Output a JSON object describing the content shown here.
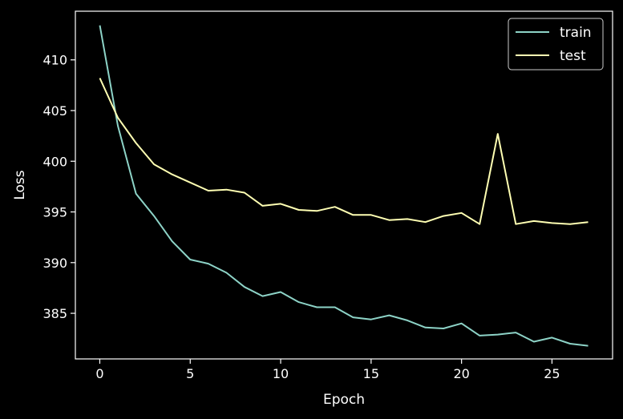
{
  "chart_data": {
    "type": "line",
    "title": "",
    "xlabel": "Epoch",
    "ylabel": "Loss",
    "xlim": [
      -1.35,
      28.35
    ],
    "ylim": [
      380.5,
      414.8
    ],
    "xticks": [
      0,
      5,
      10,
      15,
      20,
      25
    ],
    "yticks": [
      385,
      390,
      395,
      400,
      405,
      410
    ],
    "grid": false,
    "legend_position": "upper-right",
    "x": [
      0,
      1,
      2,
      3,
      4,
      5,
      6,
      7,
      8,
      9,
      10,
      11,
      12,
      13,
      14,
      15,
      16,
      17,
      18,
      19,
      20,
      21,
      22,
      23,
      24,
      25,
      26,
      27
    ],
    "series": [
      {
        "name": "train",
        "color": "#8dd3c7",
        "values": [
          413.4,
          403.5,
          396.8,
          394.6,
          392.1,
          390.3,
          389.9,
          389.0,
          387.6,
          386.7,
          387.1,
          386.1,
          385.6,
          385.6,
          384.6,
          384.4,
          384.8,
          384.3,
          383.6,
          383.5,
          384.0,
          382.8,
          382.9,
          383.1,
          382.2,
          382.6,
          382.0,
          381.8
        ]
      },
      {
        "name": "test",
        "color": "#ffffb3",
        "values": [
          408.2,
          404.3,
          401.8,
          399.7,
          398.7,
          397.9,
          397.1,
          397.2,
          396.9,
          395.6,
          395.8,
          395.2,
          395.1,
          395.5,
          394.7,
          394.7,
          394.2,
          394.3,
          394.0,
          394.6,
          394.9,
          393.8,
          402.7,
          393.8,
          394.1,
          393.9,
          393.8,
          394.0
        ]
      }
    ]
  }
}
